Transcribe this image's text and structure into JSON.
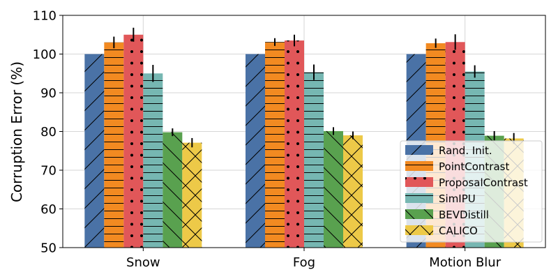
{
  "chart_data": {
    "type": "bar",
    "title": "",
    "xlabel": "",
    "ylabel": "Corruption Error (%)",
    "ylim": [
      50,
      110
    ],
    "yticks": [
      50,
      60,
      70,
      80,
      90,
      100,
      110
    ],
    "grid": true,
    "legend_position": "bottom-right",
    "categories": [
      "Snow",
      "Fog",
      "Motion Blur"
    ],
    "series": [
      {
        "name": "Rand. Init.",
        "color": "#4a72a6",
        "hatch": "diagonal",
        "values": [
          100,
          100,
          100
        ],
        "errors": [
          0,
          0,
          0
        ]
      },
      {
        "name": "PointContrast",
        "color": "#f28a21",
        "hatch": "horizontal",
        "values": [
          103,
          103.1,
          102.8
        ],
        "errors": [
          1.5,
          1.0,
          1.2
        ]
      },
      {
        "name": "ProposalContrast",
        "color": "#e15759",
        "hatch": "dots",
        "values": [
          105,
          103.5,
          103.1
        ],
        "errors": [
          1.8,
          1.5,
          2.0
        ]
      },
      {
        "name": "SimIPU",
        "color": "#76b7b2",
        "hatch": "horizontal",
        "values": [
          95,
          95.3,
          95.5
        ],
        "errors": [
          2.2,
          2.0,
          1.6
        ]
      },
      {
        "name": "BEVDistill",
        "color": "#59a14f",
        "hatch": "backslash",
        "values": [
          79.8,
          80.1,
          78.9
        ],
        "errors": [
          1.0,
          1.0,
          1.2
        ]
      },
      {
        "name": "CALICO",
        "color": "#edc948",
        "hatch": "cross",
        "values": [
          77.1,
          79.0,
          78.2
        ],
        "errors": [
          1.2,
          1.0,
          1.4
        ]
      }
    ]
  }
}
